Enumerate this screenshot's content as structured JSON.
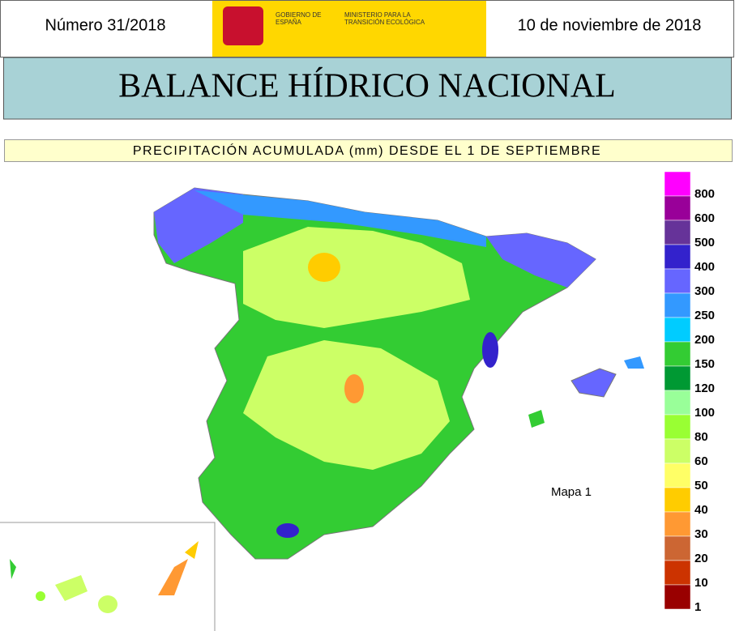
{
  "header": {
    "number": "Número 31/2018",
    "government": "GOBIERNO DE ESPAÑA",
    "ministry": "MINISTERIO PARA LA TRANSICIÓN ECOLÓGICA",
    "date": "10 de noviembre de 2018"
  },
  "title": "BALANCE HÍDRICO NACIONAL",
  "subtitle": "PRECIPITACIÓN ACUMULADA (mm) DESDE EL 1 DE SEPTIEMBRE",
  "map_label": "Mapa 1",
  "legend": [
    {
      "label": 800,
      "color": "#ff00ff"
    },
    {
      "label": 600,
      "color": "#990099"
    },
    {
      "label": 500,
      "color": "#663399"
    },
    {
      "label": 400,
      "color": "#3322cc"
    },
    {
      "label": 300,
      "color": "#6666ff"
    },
    {
      "label": 250,
      "color": "#3399ff"
    },
    {
      "label": 200,
      "color": "#00ccff"
    },
    {
      "label": 150,
      "color": "#33cc33"
    },
    {
      "label": 120,
      "color": "#009933"
    },
    {
      "label": 100,
      "color": "#99ff99"
    },
    {
      "label": 80,
      "color": "#99ff33"
    },
    {
      "label": 60,
      "color": "#ccff66"
    },
    {
      "label": 50,
      "color": "#ffff66"
    },
    {
      "label": 40,
      "color": "#ffcc00"
    },
    {
      "label": 30,
      "color": "#ff9933"
    },
    {
      "label": 20,
      "color": "#cc6633"
    },
    {
      "label": 10,
      "color": "#cc3300"
    },
    {
      "label": 1,
      "color": "#990000"
    }
  ]
}
